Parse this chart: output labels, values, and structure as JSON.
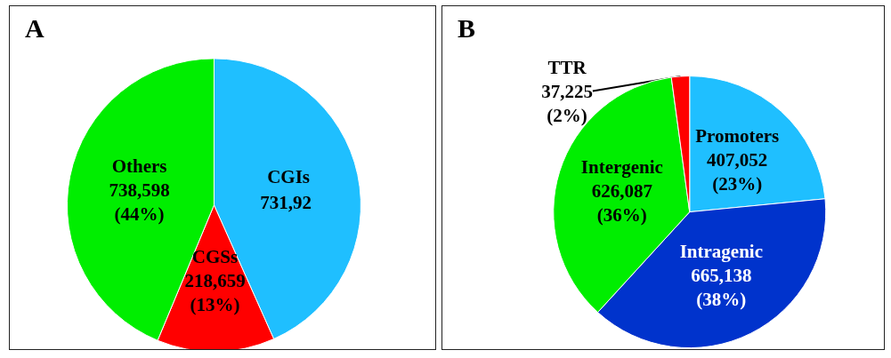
{
  "chart_data": [
    {
      "type": "pie",
      "title": "A",
      "categories": [
        "CGIs",
        "CGSs",
        "Others"
      ],
      "values": [
        731920,
        218659,
        738598
      ],
      "value_labels": [
        null,
        "218,659\n(13%)",
        "738,598\n(44%)"
      ],
      "colors": [
        "#1fbfff",
        "#ff0000",
        "#00ee00"
      ],
      "legend": false,
      "annotations": [
        {
          "text": "731,92",
          "x": "CGIs"
        }
      ]
    },
    {
      "type": "pie",
      "title": "B",
      "categories": [
        "Promoters",
        "Intragenic",
        "Intergenic",
        "TTR"
      ],
      "values": [
        407052,
        665138,
        626087,
        37225
      ],
      "value_labels": [
        "407,052\n(23%)",
        "665,138\n(38%)",
        "626,087\n(36%)",
        "37,225\n(2%)"
      ],
      "colors": [
        "#1fbfff",
        "#0033cc",
        "#00ee00",
        "#ff0000"
      ],
      "legend": false
    }
  ]
}
